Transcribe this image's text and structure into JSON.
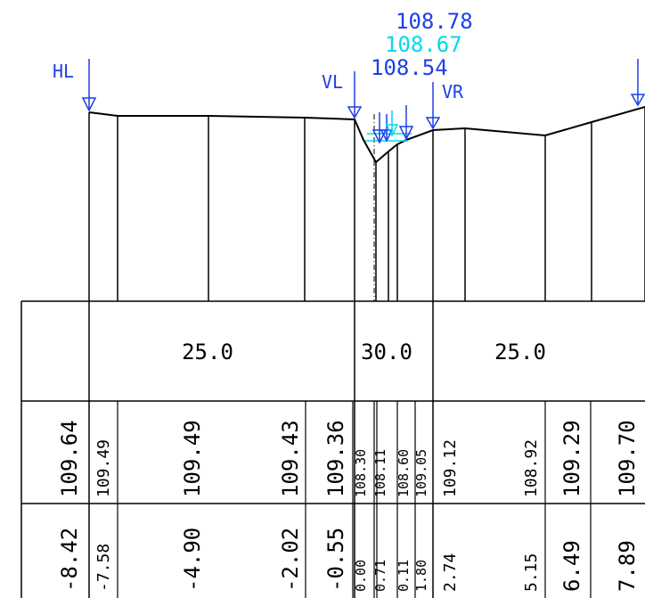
{
  "colors": {
    "line": "#000000",
    "marker": "#1f3fe6",
    "water": "#00d8e8"
  },
  "markers": {
    "hl": "HL",
    "vl": "VL",
    "vr": "VR",
    "wl_top": "108.78",
    "wl_mid": "108.67",
    "wl_low": "108.54"
  },
  "roughness": {
    "left": "25.0",
    "channel": "30.0",
    "right": "25.0"
  },
  "elevations": [
    "109.64",
    "109.49",
    "109.49",
    "109.43",
    "109.36",
    "108.30",
    "108.11",
    "108.60",
    "109.05",
    "109.12",
    "108.92",
    "109.29",
    "109.70"
  ],
  "stations": [
    "-8.42",
    "-7.58",
    "-4.90",
    "-2.02",
    "-0.55",
    "0.00",
    "0.71",
    "0.11",
    "1.80",
    "2.74",
    "5.15",
    "6.49",
    "7.89"
  ]
}
